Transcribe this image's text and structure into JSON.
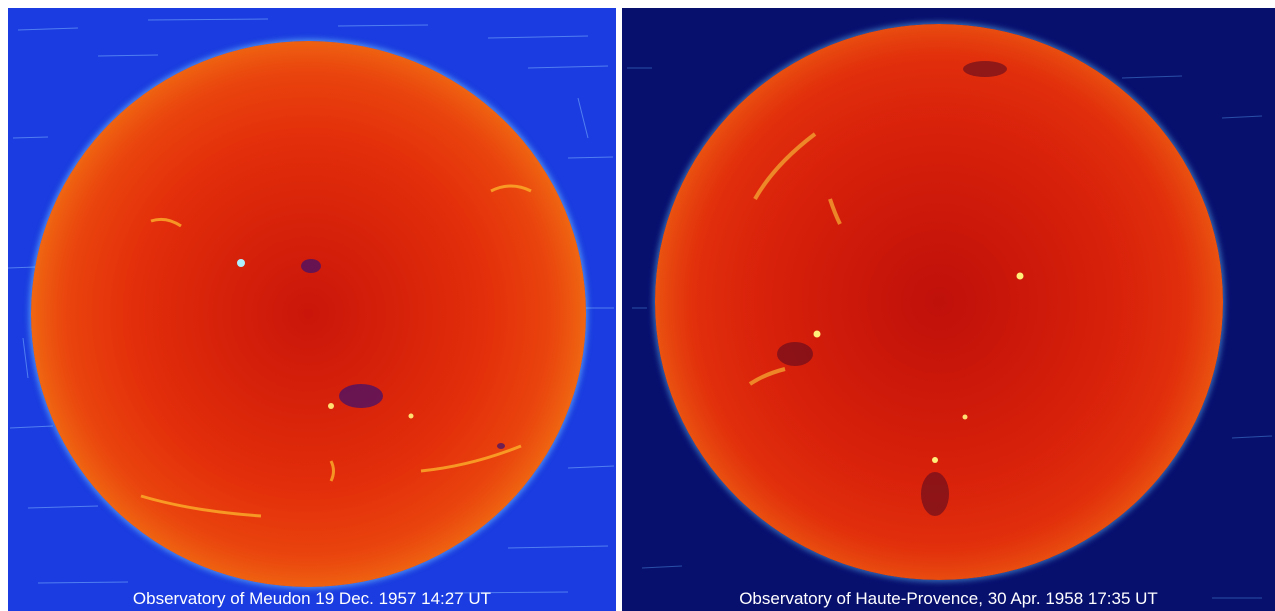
{
  "panels": [
    {
      "caption": "Observatory of Meudon 19 Dec. 1957 14:27 UT",
      "background_color": "#1a3ce0",
      "subject": "solar-disk-icon"
    },
    {
      "caption": "Observatory of Haute-Provence, 30 Apr. 1958 17:35 UT",
      "background_color": "#08106e",
      "subject": "solar-disk-icon"
    }
  ]
}
